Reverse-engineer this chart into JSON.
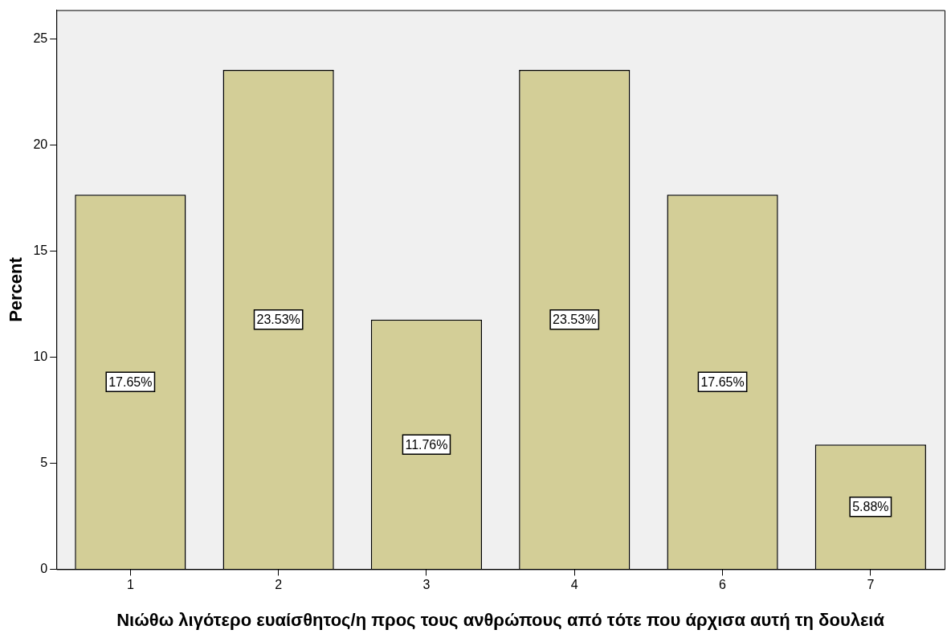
{
  "chart_data": {
    "type": "bar",
    "xlabel": "Νιώθω λιγότερο ευαίσθητος/η προς τους ανθρώπους από τότε που άρχισα αυτή τη δουλειά",
    "ylabel": "Percent",
    "categories": [
      "1",
      "2",
      "3",
      "4",
      "6",
      "7"
    ],
    "values": [
      17.65,
      23.53,
      11.76,
      23.53,
      17.65,
      5.88
    ],
    "value_labels": [
      "17.65%",
      "23.53%",
      "11.76%",
      "23.53%",
      "17.65%",
      "5.88%"
    ],
    "color": "#d3ce97",
    "ylim": [
      0,
      26.35
    ],
    "yticks": [
      0,
      5,
      10,
      15,
      20,
      25
    ],
    "grid": false,
    "legend": false
  }
}
